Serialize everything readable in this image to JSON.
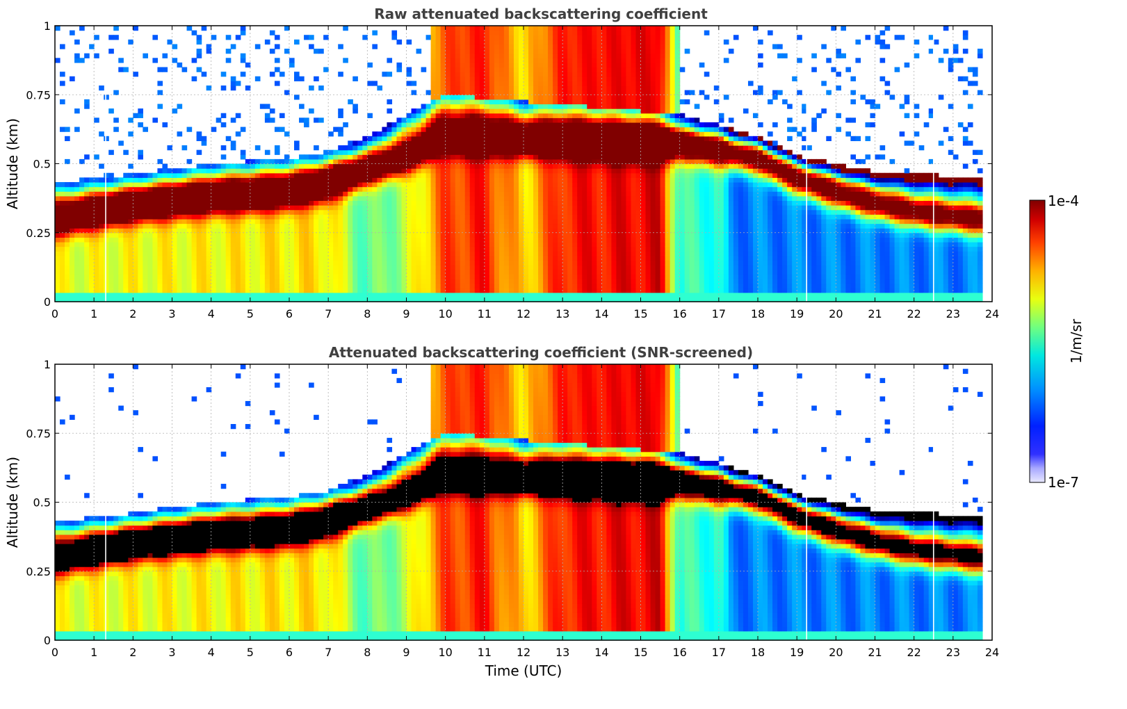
{
  "chart_data": [
    {
      "type": "heatmap",
      "title": "Raw attenuated backscattering coefficient",
      "xlabel": "",
      "ylabel": "Altitude (km)",
      "xlim": [
        0,
        24
      ],
      "ylim": [
        0,
        1
      ],
      "x_ticks": [
        "0",
        "1",
        "2",
        "3",
        "4",
        "5",
        "6",
        "7",
        "8",
        "9",
        "10",
        "11",
        "12",
        "13",
        "14",
        "15",
        "16",
        "17",
        "18",
        "19",
        "20",
        "21",
        "22",
        "23",
        "24"
      ],
      "y_ticks": [
        "0",
        "0.25",
        "0.5",
        "0.75",
        "1"
      ],
      "grid": true,
      "data_end_time": 23.75,
      "layer_top_altitude": [
        [
          0,
          0.43
        ],
        [
          2,
          0.46
        ],
        [
          4,
          0.5
        ],
        [
          6,
          0.52
        ],
        [
          7,
          0.54
        ],
        [
          8,
          0.6
        ],
        [
          9,
          0.68
        ],
        [
          10,
          0.75
        ],
        [
          16,
          0.68
        ],
        [
          18,
          0.6
        ],
        [
          19,
          0.53
        ],
        [
          21,
          0.47
        ],
        [
          23.75,
          0.45
        ]
      ],
      "layer_center_altitude": [
        [
          0,
          0.3
        ],
        [
          2,
          0.35
        ],
        [
          4,
          0.38
        ],
        [
          6,
          0.4
        ],
        [
          7,
          0.43
        ],
        [
          8,
          0.48
        ],
        [
          9,
          0.53
        ],
        [
          9.9,
          0.6
        ],
        [
          16,
          0.57
        ],
        [
          17,
          0.55
        ],
        [
          18,
          0.52
        ],
        [
          19,
          0.45
        ],
        [
          20,
          0.4
        ],
        [
          21,
          0.36
        ],
        [
          22,
          0.33
        ],
        [
          23.75,
          0.3
        ]
      ],
      "column_intensity_range": [
        [
          0,
          0.6
        ],
        [
          7,
          0.65
        ],
        [
          8,
          0.45
        ],
        [
          9,
          0.55
        ],
        [
          10,
          0.8
        ],
        [
          11,
          0.85
        ],
        [
          12,
          0.65
        ],
        [
          13,
          0.85
        ],
        [
          15.5,
          0.9
        ],
        [
          16,
          0.42
        ],
        [
          17,
          0.42
        ],
        [
          17.3,
          0.25
        ],
        [
          23.75,
          0.25
        ]
      ],
      "blank_time_columns": [
        1.3,
        19.25,
        22.5
      ]
    },
    {
      "type": "heatmap",
      "title": "Attenuated backscattering coefficient (SNR-screened)",
      "xlabel": "Time (UTC)",
      "ylabel": "Altitude (km)",
      "xlim": [
        0,
        24
      ],
      "ylim": [
        0,
        1
      ],
      "x_ticks": [
        "0",
        "1",
        "2",
        "3",
        "4",
        "5",
        "6",
        "7",
        "8",
        "9",
        "10",
        "11",
        "12",
        "13",
        "14",
        "15",
        "16",
        "17",
        "18",
        "19",
        "20",
        "21",
        "22",
        "23",
        "24"
      ],
      "y_ticks": [
        "0",
        "0.25",
        "0.5",
        "0.75",
        "1"
      ],
      "grid": true,
      "data_end_time": 23.75,
      "saturated_color": "#000000",
      "blank_time_columns": [
        1.3,
        19.25,
        22.5
      ]
    }
  ],
  "colorbar": {
    "label": "1/m/sr",
    "max_label": "1e-4",
    "min_label": "1e-7",
    "colormap": "jet",
    "low_colors": [
      "#e8e8ff",
      "#a8a8ff",
      "#5050ff"
    ],
    "high_color": "#800000"
  }
}
